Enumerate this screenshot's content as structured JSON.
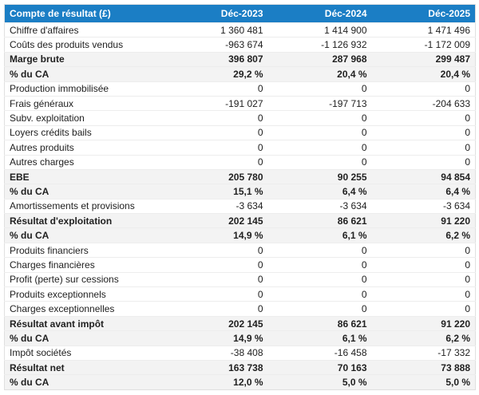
{
  "chart_data": {
    "type": "table",
    "title": "Compte de résultat (£)",
    "corner_header": "Compte de résultat (£)",
    "column_headers": [
      "Déc-2023",
      "Déc-2024",
      "Déc-2025"
    ],
    "rows": [
      {
        "label": "Chiffre d'affaires",
        "values": [
          "1 360 481",
          "1 414 900",
          "1 471 496"
        ],
        "emphasis": false
      },
      {
        "label": "Coûts des produits vendus",
        "values": [
          "-963 674",
          "-1 126 932",
          "-1 172 009"
        ],
        "emphasis": false
      },
      {
        "label": "Marge brute",
        "values": [
          "396 807",
          "287 968",
          "299 487"
        ],
        "emphasis": true
      },
      {
        "label": "% du CA",
        "values": [
          "29,2 %",
          "20,4 %",
          "20,4 %"
        ],
        "emphasis": true
      },
      {
        "label": "Production immobilisée",
        "values": [
          "0",
          "0",
          "0"
        ],
        "emphasis": false
      },
      {
        "label": "Frais généraux",
        "values": [
          "-191 027",
          "-197 713",
          "-204 633"
        ],
        "emphasis": false
      },
      {
        "label": "Subv. exploitation",
        "values": [
          "0",
          "0",
          "0"
        ],
        "emphasis": false
      },
      {
        "label": "Loyers crédits bails",
        "values": [
          "0",
          "0",
          "0"
        ],
        "emphasis": false
      },
      {
        "label": "Autres produits",
        "values": [
          "0",
          "0",
          "0"
        ],
        "emphasis": false
      },
      {
        "label": "Autres charges",
        "values": [
          "0",
          "0",
          "0"
        ],
        "emphasis": false
      },
      {
        "label": "EBE",
        "values": [
          "205 780",
          "90 255",
          "94 854"
        ],
        "emphasis": true
      },
      {
        "label": "% du CA",
        "values": [
          "15,1 %",
          "6,4 %",
          "6,4 %"
        ],
        "emphasis": true
      },
      {
        "label": "Amortissements et provisions",
        "values": [
          "-3 634",
          "-3 634",
          "-3 634"
        ],
        "emphasis": false
      },
      {
        "label": "Résultat d'exploitation",
        "values": [
          "202 145",
          "86 621",
          "91 220"
        ],
        "emphasis": true
      },
      {
        "label": "% du CA",
        "values": [
          "14,9 %",
          "6,1 %",
          "6,2 %"
        ],
        "emphasis": true
      },
      {
        "label": "Produits financiers",
        "values": [
          "0",
          "0",
          "0"
        ],
        "emphasis": false
      },
      {
        "label": "Charges financières",
        "values": [
          "0",
          "0",
          "0"
        ],
        "emphasis": false
      },
      {
        "label": "Profit (perte) sur cessions",
        "values": [
          "0",
          "0",
          "0"
        ],
        "emphasis": false
      },
      {
        "label": "Produits exceptionnels",
        "values": [
          "0",
          "0",
          "0"
        ],
        "emphasis": false
      },
      {
        "label": "Charges exceptionnelles",
        "values": [
          "0",
          "0",
          "0"
        ],
        "emphasis": false
      },
      {
        "label": "Résultat avant impôt",
        "values": [
          "202 145",
          "86 621",
          "91 220"
        ],
        "emphasis": true
      },
      {
        "label": "% du CA",
        "values": [
          "14,9 %",
          "6,1 %",
          "6,2 %"
        ],
        "emphasis": true
      },
      {
        "label": "Impôt sociétés",
        "values": [
          "-38 408",
          "-16 458",
          "-17 332"
        ],
        "emphasis": false
      },
      {
        "label": "Résultat net",
        "values": [
          "163 738",
          "70 163",
          "73 888"
        ],
        "emphasis": true
      },
      {
        "label": "% du CA",
        "values": [
          "12,0 %",
          "5,0 %",
          "5,0 %"
        ],
        "emphasis": true
      }
    ]
  },
  "colors": {
    "header_bg": "#1b7ec5",
    "header_text": "#ffffff",
    "emphasis_row_bg": "#f3f3f3",
    "text": "#212121"
  }
}
